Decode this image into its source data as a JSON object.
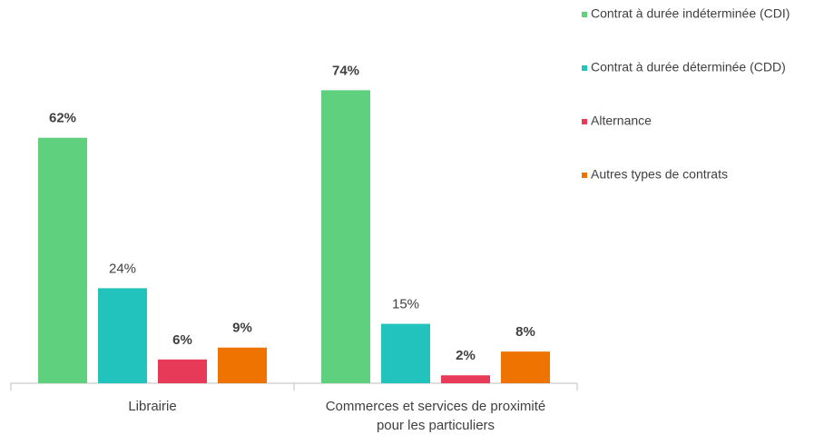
{
  "chart_data": {
    "type": "bar",
    "categories": [
      "Librairie",
      "Commerces et services de proximité pour les particuliers"
    ],
    "series": [
      {
        "name": "Contrat à durée indéterminée (CDI)",
        "color": "#5fd07e",
        "values": [
          62,
          74
        ],
        "value_labels": [
          "62%",
          "74%"
        ]
      },
      {
        "name": "Contrat à durée déterminée (CDD)",
        "color": "#22c3bd",
        "values": [
          24,
          15
        ],
        "value_labels": [
          "24%",
          "15%"
        ]
      },
      {
        "name": "Alternance",
        "color": "#e63a58",
        "values": [
          6,
          2
        ],
        "value_labels": [
          "6%",
          "2%"
        ]
      },
      {
        "name": "Autres types de contrats",
        "color": "#ef7300",
        "values": [
          9,
          8
        ],
        "value_labels": [
          "9%",
          "8%"
        ]
      }
    ]
  }
}
